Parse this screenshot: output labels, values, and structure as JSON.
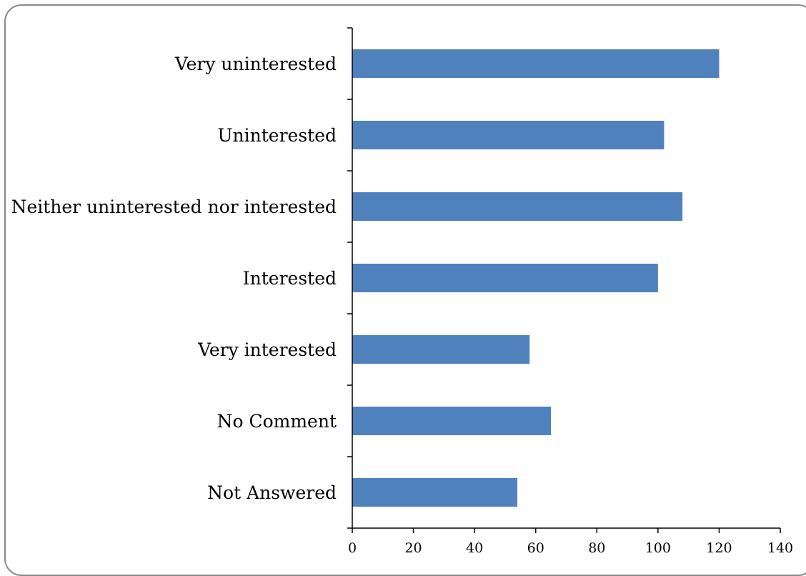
{
  "chart_data": {
    "type": "bar",
    "orientation": "horizontal",
    "categories": [
      "Very uninterested",
      "Uninterested",
      "Neither uninterested nor interested",
      "Interested",
      "Very interested",
      "No Comment",
      "Not Answered"
    ],
    "values": [
      120,
      102,
      108,
      100,
      58,
      65,
      54
    ],
    "title": "",
    "xlabel": "",
    "ylabel": "",
    "xlim": [
      0,
      140
    ],
    "x_ticks": [
      0,
      20,
      40,
      60,
      80,
      100,
      120,
      140
    ],
    "bar_color": "#4F81BD",
    "grid": false,
    "legend": "none"
  }
}
